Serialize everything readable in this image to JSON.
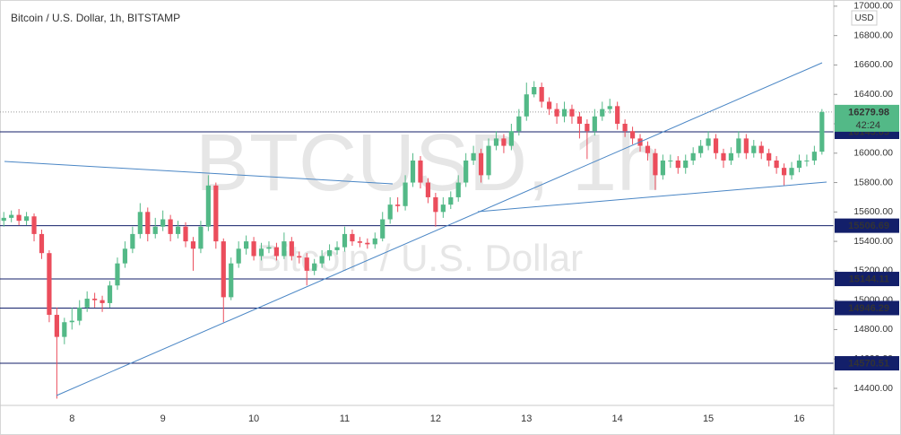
{
  "chart_data": {
    "type": "candlestick",
    "title": "Bitcoin / U.S. Dollar, 1h, BITSTAMP",
    "watermark": "BTCUSD, 1h",
    "watermark_subtitle": "Bitcoin / U.S. Dollar",
    "currency": "USD",
    "categories": [
      null,
      null,
      null,
      null,
      null,
      null,
      null,
      null,
      null,
      "8",
      null,
      null,
      null,
      null,
      null,
      null,
      null,
      null,
      null,
      null,
      null,
      "9",
      null,
      null,
      null,
      null,
      null,
      null,
      null,
      null,
      null,
      null,
      null,
      "10",
      null,
      null,
      null,
      null,
      null,
      null,
      null,
      null,
      null,
      null,
      null,
      "11",
      null,
      null,
      null,
      null,
      null,
      null,
      null,
      null,
      null,
      null,
      null,
      "12",
      null,
      null,
      null,
      null,
      null,
      null,
      null,
      null,
      null,
      null,
      null,
      "13",
      null,
      null,
      null,
      null,
      null,
      null,
      null,
      null,
      null,
      null,
      null,
      "14",
      null,
      null,
      null,
      null,
      null,
      null,
      null,
      null,
      null,
      null,
      null,
      "15",
      null,
      null,
      null,
      null,
      null,
      null,
      null,
      null,
      null,
      null,
      null,
      "16",
      null,
      null,
      null
    ],
    "open": [
      15540,
      15560,
      15580,
      15540,
      15570,
      15450,
      15320,
      14900,
      14750,
      14850,
      14860,
      14950,
      15010,
      15000,
      14980,
      15100,
      15250,
      15350,
      15450,
      15600,
      15450,
      15500,
      15550,
      15450,
      15500,
      15400,
      15350,
      15500,
      15780,
      15400,
      15020,
      15250,
      15350,
      15400,
      15300,
      15350,
      15360,
      15300,
      15400,
      15300,
      15290,
      15200,
      15250,
      15300,
      15340,
      15360,
      15450,
      15400,
      15390,
      15380,
      15420,
      15550,
      15650,
      15640,
      15800,
      15950,
      15800,
      15700,
      15600,
      15650,
      15700,
      15800,
      15950,
      16000,
      15850,
      16050,
      16100,
      16050,
      16150,
      16250,
      16400,
      16450,
      16350,
      16300,
      16250,
      16300,
      16250,
      16200,
      16150,
      16250,
      16300,
      16320,
      16200,
      16150,
      16100,
      16050,
      16000,
      15850,
      15950,
      15950,
      15900,
      15950,
      16000,
      16050,
      16100,
      16000,
      15950,
      16000,
      16100,
      16000,
      16050,
      16000,
      15950,
      15900,
      15850,
      15900,
      15950,
      15950,
      16010
    ],
    "high": [
      15600,
      15610,
      15620,
      15600,
      15590,
      15480,
      15340,
      14950,
      14880,
      14950,
      15000,
      15060,
      15050,
      15030,
      15130,
      15290,
      15400,
      15500,
      15660,
      15630,
      15560,
      15610,
      15580,
      15540,
      15530,
      15430,
      15540,
      15850,
      15800,
      15420,
      15290,
      15400,
      15440,
      15430,
      15390,
      15400,
      15390,
      15460,
      15430,
      15330,
      15320,
      15280,
      15340,
      15380,
      15400,
      15500,
      15480,
      15430,
      15420,
      15460,
      15600,
      15700,
      15700,
      15850,
      16000,
      15980,
      15830,
      15730,
      15700,
      15740,
      15850,
      16000,
      16050,
      16030,
      16100,
      16150,
      16130,
      16200,
      16300,
      16480,
      16490,
      16480,
      16380,
      16340,
      16350,
      16330,
      16280,
      16230,
      16300,
      16350,
      16370,
      16350,
      16230,
      16180,
      16130,
      16080,
      16030,
      15990,
      15990,
      15980,
      15990,
      16040,
      16090,
      16150,
      16130,
      16030,
      16040,
      16150,
      16130,
      16090,
      16080,
      16030,
      15980,
      15930,
      15940,
      15990,
      15990,
      16050,
      16300
    ],
    "low": [
      15500,
      15530,
      15510,
      15510,
      15400,
      15280,
      14850,
      14330,
      14700,
      14800,
      14830,
      14920,
      14950,
      14920,
      14950,
      15070,
      15220,
      15320,
      15420,
      15400,
      15420,
      15470,
      15400,
      15420,
      15360,
      15200,
      15320,
      15470,
      15350,
      14850,
      15000,
      15220,
      15310,
      15270,
      15270,
      15320,
      15270,
      15280,
      15270,
      15250,
      15100,
      15170,
      15220,
      15270,
      15310,
      15330,
      15370,
      15360,
      15350,
      15350,
      15400,
      15520,
      15600,
      15610,
      15770,
      15760,
      15660,
      15500,
      15560,
      15620,
      15670,
      15770,
      15920,
      15800,
      15820,
      16020,
      16000,
      16020,
      16120,
      16220,
      16380,
      16310,
      16260,
      16200,
      16210,
      16200,
      16100,
      15960,
      16120,
      16220,
      16270,
      16160,
      16110,
      16060,
      16010,
      15950,
      15750,
      15820,
      15900,
      15860,
      15860,
      15920,
      15970,
      16020,
      15960,
      15900,
      15920,
      15970,
      15960,
      15970,
      15960,
      15910,
      15860,
      15780,
      15820,
      15870,
      15910,
      15920,
      15990
    ],
    "close": [
      15560,
      15580,
      15540,
      15570,
      15450,
      15320,
      14900,
      14750,
      14850,
      14860,
      14950,
      15010,
      15000,
      14980,
      15100,
      15250,
      15350,
      15450,
      15600,
      15450,
      15500,
      15550,
      15450,
      15500,
      15400,
      15350,
      15500,
      15780,
      15400,
      15020,
      15250,
      15350,
      15400,
      15300,
      15350,
      15360,
      15300,
      15400,
      15300,
      15290,
      15200,
      15250,
      15300,
      15340,
      15360,
      15450,
      15400,
      15390,
      15380,
      15420,
      15550,
      15650,
      15640,
      15800,
      15950,
      15800,
      15700,
      15600,
      15650,
      15700,
      15800,
      15950,
      16000,
      15850,
      16050,
      16100,
      16050,
      16150,
      16250,
      16400,
      16450,
      16350,
      16300,
      16250,
      16300,
      16250,
      16200,
      16150,
      16250,
      16300,
      16320,
      16200,
      16150,
      16100,
      16050,
      16000,
      15850,
      15950,
      15950,
      15900,
      15950,
      16000,
      16050,
      16100,
      16000,
      15950,
      16000,
      16100,
      16000,
      16050,
      16000,
      15950,
      15900,
      15850,
      15900,
      15950,
      15950,
      16010,
      16280
    ],
    "up_color": "#53b987",
    "down_color": "#eb4d5c",
    "ylim": [
      14284,
      17042
    ],
    "yticks": [
      {
        "value": 14400,
        "label": "14400.00"
      },
      {
        "value": 14600,
        "label": "14600.00"
      },
      {
        "value": 14800,
        "label": "14800.00"
      },
      {
        "value": 15000,
        "label": "15000.00"
      },
      {
        "value": 15200,
        "label": "15200.00"
      },
      {
        "value": 15400,
        "label": "15400.00"
      },
      {
        "value": 15600,
        "label": "15600.00"
      },
      {
        "value": 15800,
        "label": "15800.00"
      },
      {
        "value": 16000,
        "label": "16000.00"
      },
      {
        "value": 16200,
        "label": "16200.00"
      },
      {
        "value": 16400,
        "label": "16400.00"
      },
      {
        "value": 16600,
        "label": "16600.00"
      },
      {
        "value": 16800,
        "label": "16800.00"
      },
      {
        "value": 17000,
        "label": "17000.00"
      }
    ],
    "levels": [
      16145.05,
      15506.69,
      15144.11,
      14946.29,
      14570.51
    ],
    "level_color": "#131f6a",
    "last_price": 16279.98,
    "last_price_color": "#53b987",
    "countdown": "42:24",
    "grid": false
  }
}
